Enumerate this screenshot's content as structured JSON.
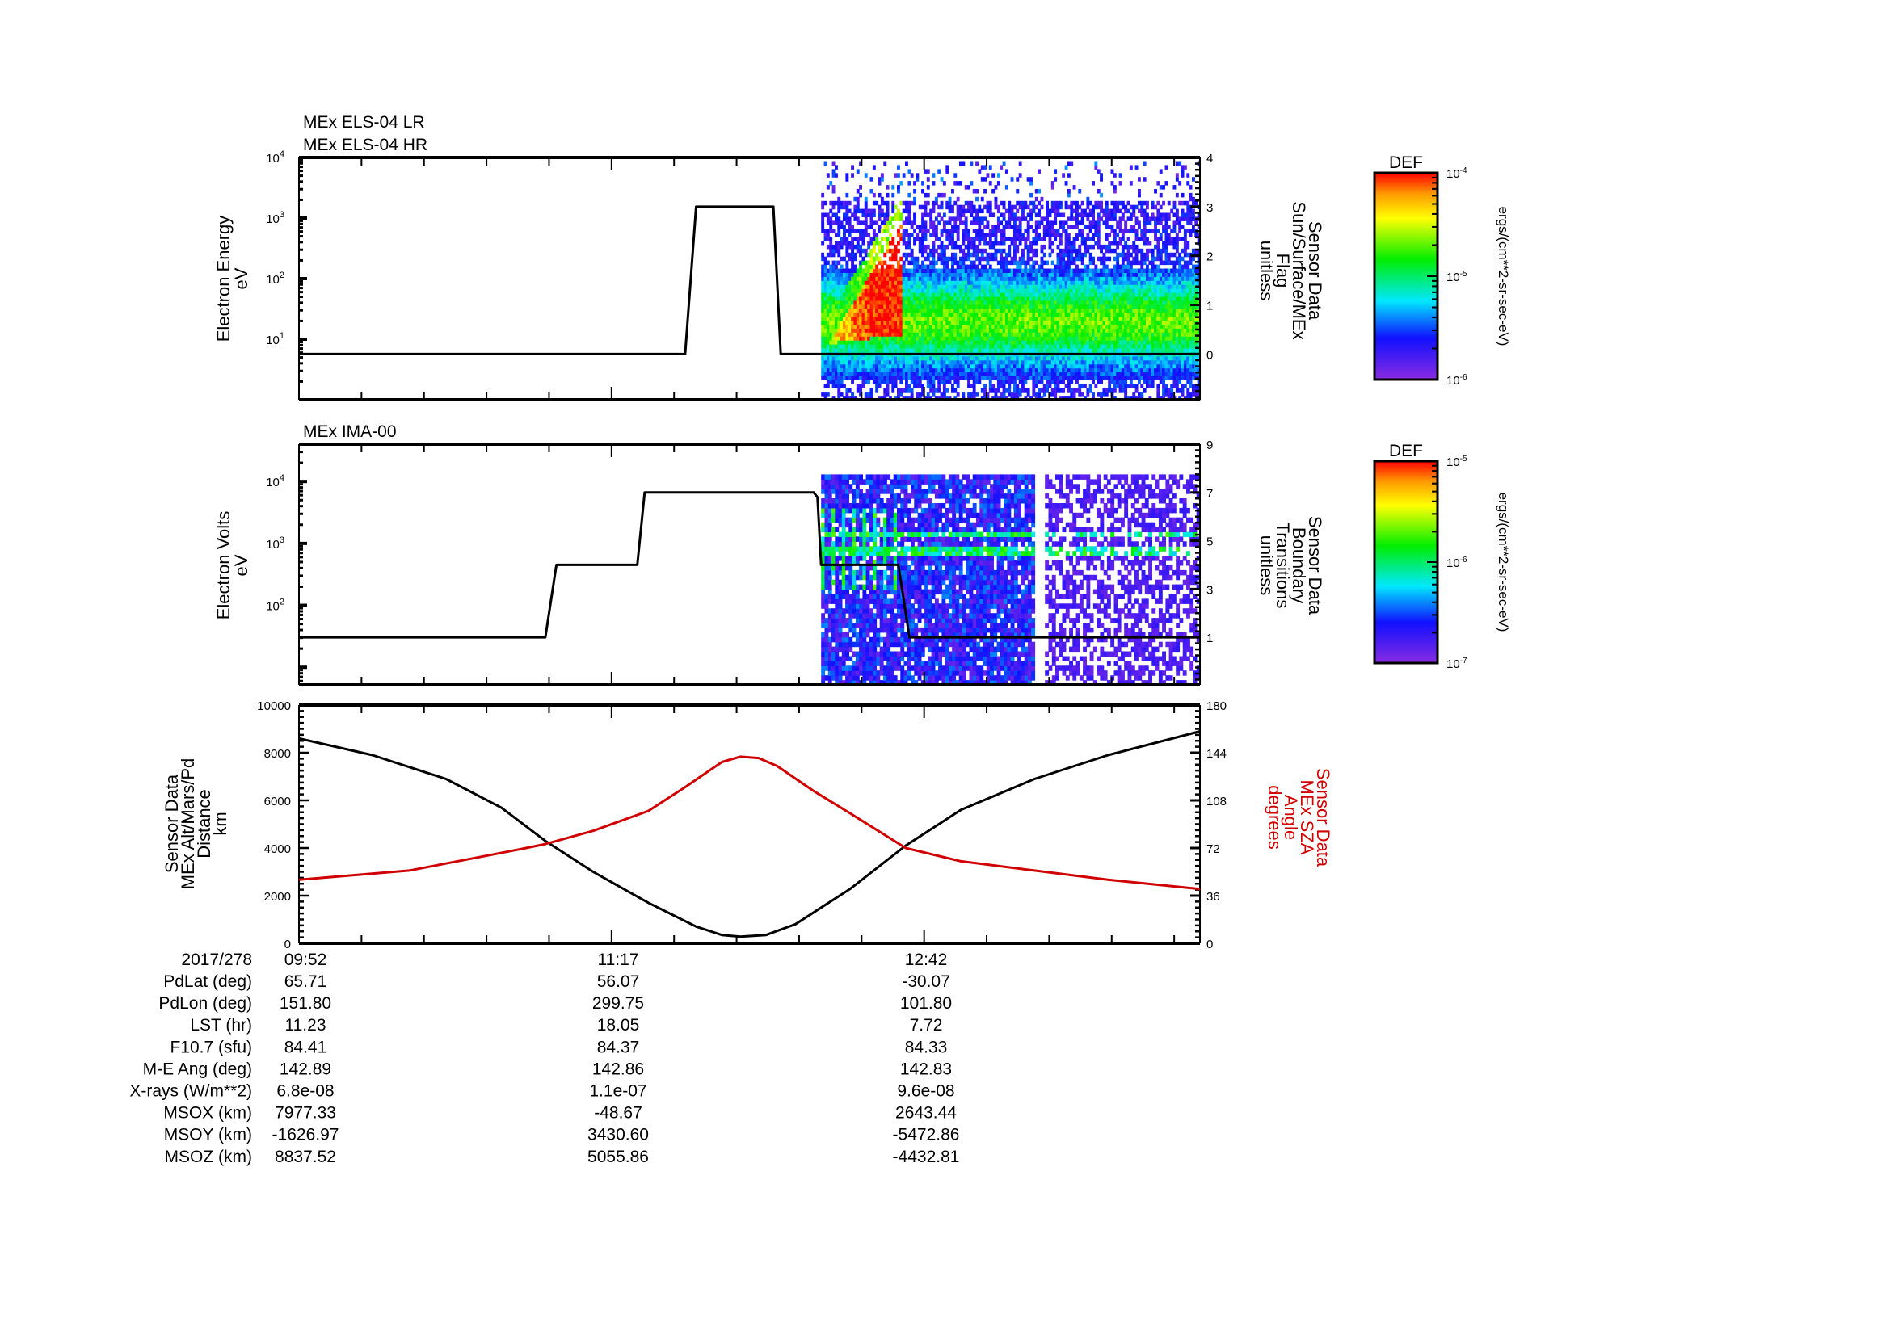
{
  "chart_data": [
    {
      "type": "heatmap",
      "id": "els",
      "titles": [
        "MEx ELS-04 LR",
        "MEx ELS-04 HR"
      ],
      "ylabel": [
        "Electron Energy",
        "eV"
      ],
      "yscale": "log",
      "ylim": [
        1,
        10000
      ],
      "yticks": [
        {
          "base": "10",
          "exp": "1",
          "v": 10
        },
        {
          "base": "10",
          "exp": "2",
          "v": 100
        },
        {
          "base": "10",
          "exp": "3",
          "v": 1000
        },
        {
          "base": "10",
          "exp": "4",
          "v": 10000
        }
      ],
      "y2label": [
        "Sensor Data",
        "Sun/Surface/MEx",
        "Flag",
        "unitless"
      ],
      "y2lim": [
        -0.93,
        4
      ],
      "y2ticks": [
        "0",
        "1",
        "2",
        "3",
        "4"
      ],
      "line": {
        "name": "Sun/Surface/MEx Flag",
        "color": "#000000",
        "t": [
          0,
          105,
          108,
          129,
          131,
          245
        ],
        "y": [
          0,
          0,
          3,
          3,
          0,
          0
        ]
      },
      "spectrogram": {
        "t_start_min": 142,
        "t_end_min": 245,
        "energy_range_eV": [
          1,
          400
        ],
        "peak_energy_eV": [
          8,
          50
        ],
        "peak_time_min": [
          145,
          163
        ]
      },
      "colorbar": {
        "title": "DEF",
        "ticks": [
          {
            "base": "10",
            "exp": "-4"
          },
          {
            "base": "10",
            "exp": "-5"
          },
          {
            "base": "10",
            "exp": "-6"
          }
        ],
        "unit": "ergs/(cm**2-sr-sec-eV)",
        "range": [
          1e-06,
          0.0001
        ]
      }
    },
    {
      "type": "heatmap",
      "id": "ima",
      "titles": [
        "MEx IMA-00"
      ],
      "ylabel": [
        "Electron Volts",
        "eV"
      ],
      "yscale": "log",
      "ylim": [
        5.2,
        40000
      ],
      "yticks": [
        {
          "base": "10",
          "exp": "2",
          "v": 100
        },
        {
          "base": "10",
          "exp": "3",
          "v": 1000
        },
        {
          "base": "10",
          "exp": "4",
          "v": 10000
        }
      ],
      "y2label": [
        "Sensor Data",
        "Boundary",
        "Transitions",
        "unitless"
      ],
      "y2lim": [
        -0.97,
        9
      ],
      "y2ticks": [
        "1",
        "3",
        "5",
        "7",
        "9"
      ],
      "line": {
        "name": "Boundary Transitions",
        "color": "#000000",
        "t": [
          0,
          67,
          70,
          92,
          94,
          140,
          141,
          142,
          163,
          166,
          245
        ],
        "y": [
          1,
          1,
          4,
          4,
          7,
          7,
          6.8,
          4,
          4,
          1,
          1
        ]
      },
      "spectrogram": {
        "t_start_min": 142,
        "t_end_min": 245,
        "gap_min": [
          200,
          202
        ],
        "energy_range_eV": [
          5.2,
          13000
        ],
        "band_energies_eV": [
          700,
          1400
        ]
      },
      "colorbar": {
        "title": "DEF",
        "ticks": [
          {
            "base": "10",
            "exp": "-5"
          },
          {
            "base": "10",
            "exp": "-6"
          },
          {
            "base": "10",
            "exp": "-7"
          }
        ],
        "unit": "ergs/(cm**2-sr-sec-eV)",
        "range": [
          1e-07,
          1e-05
        ]
      }
    },
    {
      "type": "line",
      "id": "orbit",
      "ylabel": [
        "Sensor Data",
        "MEx Alt/Mars/Pd",
        "Distance",
        "km"
      ],
      "ylim": [
        0,
        10000
      ],
      "yticks": [
        "0",
        "2000",
        "4000",
        "6000",
        "8000",
        "10000"
      ],
      "y2label": [
        "Sensor Data",
        "MEx SZA",
        "Angle",
        "degrees"
      ],
      "y2lim": [
        0,
        180
      ],
      "y2ticks": [
        "0",
        "36",
        "72",
        "108",
        "144",
        "180"
      ],
      "series": [
        {
          "name": "MEx Alt/Mars/Pd Distance (km)",
          "color": "#000000",
          "axis": "left",
          "t": [
            0,
            20,
            40,
            55,
            67,
            80,
            95,
            108,
            115,
            120,
            127,
            135,
            150,
            165,
            180,
            200,
            220,
            245
          ],
          "y": [
            8600,
            7900,
            6900,
            5700,
            4300,
            3000,
            1700,
            700,
            350,
            280,
            350,
            800,
            2300,
            4100,
            5600,
            6900,
            7900,
            8900
          ]
        },
        {
          "name": "MEx SZA Angle (degrees)",
          "color": "#d00000",
          "axis": "right",
          "t": [
            0,
            30,
            60,
            67,
            80,
            95,
            105,
            115,
            120,
            125,
            130,
            140,
            150,
            165,
            180,
            200,
            220,
            245
          ],
          "y": [
            48,
            55,
            71,
            75,
            85,
            100,
            118,
            137,
            141,
            140,
            134,
            115,
            98,
            72,
            62,
            55,
            48,
            41
          ]
        }
      ]
    }
  ],
  "time_axis": {
    "date": "2017/278",
    "start_min_of_day": 592,
    "span_min": 245,
    "labels": [
      "09:52",
      "11:17",
      "12:42"
    ],
    "label_offsets_min": [
      0,
      85,
      170
    ]
  },
  "ephemeris": {
    "rows": [
      {
        "label": "PdLat (deg)",
        "values": [
          "65.71",
          "56.07",
          "-30.07"
        ]
      },
      {
        "label": "PdLon (deg)",
        "values": [
          "151.80",
          "299.75",
          "101.80"
        ]
      },
      {
        "label": "LST (hr)",
        "values": [
          "11.23",
          "18.05",
          "7.72"
        ]
      },
      {
        "label": "F10.7 (sfu)",
        "values": [
          "84.41",
          "84.37",
          "84.33"
        ]
      },
      {
        "label": "M-E Ang (deg)",
        "values": [
          "142.89",
          "142.86",
          "142.83"
        ]
      },
      {
        "label": "X-rays (W/m**2)",
        "values": [
          "6.8e-08",
          "1.1e-07",
          "9.6e-08"
        ]
      },
      {
        "label": "MSOX (km)",
        "values": [
          "7977.33",
          "-48.67",
          "2643.44"
        ]
      },
      {
        "label": "MSOY (km)",
        "values": [
          "-1626.97",
          "3430.60",
          "-5472.86"
        ]
      },
      {
        "label": "MSOZ (km)",
        "values": [
          "8837.52",
          "5055.86",
          "-4432.81"
        ]
      }
    ]
  },
  "colors": {
    "sza": "#d00000",
    "line": "#000000"
  }
}
